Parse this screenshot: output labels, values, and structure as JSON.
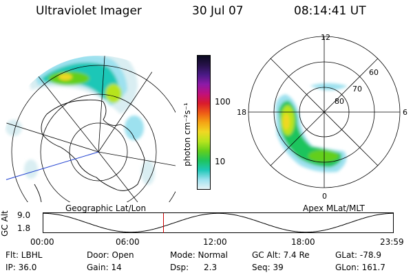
{
  "header": {
    "instrument": "Ultraviolet Imager",
    "date": "30 Jul 07",
    "time": "08:14:41 UT"
  },
  "left_panel": {
    "label": "Geographic Lat/Lon"
  },
  "right_panel": {
    "label": "Apex MLat/MLT",
    "mlt_labels": [
      "12",
      "18",
      "6",
      "0"
    ],
    "lat_labels": [
      "60",
      "70",
      "80"
    ]
  },
  "colorbar": {
    "unit_label": "photon cm⁻²s⁻¹",
    "ticks": [
      "100",
      "10"
    ],
    "colors": [
      "#0a0a1e",
      "#27124a",
      "#4a1a86",
      "#8c1aa8",
      "#c0107c",
      "#d91a2c",
      "#ee5b16",
      "#f5a414",
      "#f0d823",
      "#b7e41e",
      "#63cf1d",
      "#1ec45d",
      "#1fc7b7",
      "#9de1ef",
      "#e7f3f6"
    ]
  },
  "altitude_strip": {
    "axis_label": "GC Alt",
    "y_ticks": [
      "9.0",
      "1.8"
    ],
    "x_ticks": [
      "00:00",
      "06:00",
      "12:00",
      "18:00",
      "23:59"
    ],
    "current_marker_hour": 8.25,
    "marker_color": "#cc0000"
  },
  "status": {
    "row1": {
      "flt": "Flt: LBHL",
      "door": "Door: Open",
      "mode": "Mode: Normal",
      "gc_alt": "GC Alt: 7.4 Re",
      "glat": "GLat: -78.9"
    },
    "row2": {
      "ip": "IP: 36.0",
      "gain": "Gain: 14",
      "dsp_label": "Dsp:",
      "dsp_value": "2.3",
      "seq": "Seq: 39",
      "glon": "GLon: 161.7"
    }
  }
}
